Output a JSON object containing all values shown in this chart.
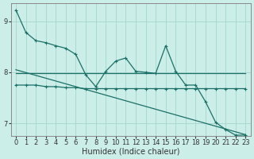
{
  "xlabel": "Humidex (Indice chaleur)",
  "bg_color": "#cceee8",
  "grid_color": "#aad8d0",
  "line_color": "#1a7068",
  "x_max": 23,
  "ylim": [
    6.75,
    9.35
  ],
  "yticks": [
    7,
    8,
    9
  ],
  "series": {
    "line1": {
      "x": [
        0,
        1,
        2,
        3,
        4,
        5,
        6,
        7,
        8,
        9,
        10,
        11,
        12,
        13,
        14,
        15,
        16,
        17,
        18,
        19,
        20,
        21,
        22,
        23
      ],
      "y": [
        9.22,
        8.78,
        8.62,
        8.58,
        8.52,
        8.47,
        8.35,
        7.95,
        7.72,
        8.02,
        8.22,
        8.28,
        8.02,
        8.0,
        7.98,
        8.52,
        8.02,
        7.75,
        7.75,
        7.42,
        7.02,
        6.88,
        6.77,
        6.77
      ]
    },
    "line2": {
      "x": [
        0,
        1,
        2,
        3,
        4,
        5,
        6,
        7,
        8,
        9,
        10,
        11,
        12,
        13,
        14,
        15,
        16,
        17,
        18,
        19,
        20,
        21,
        22,
        23
      ],
      "y": [
        7.98,
        7.98,
        7.98,
        7.98,
        7.98,
        7.98,
        7.98,
        7.98,
        7.98,
        7.98,
        7.98,
        7.98,
        7.98,
        7.98,
        7.98,
        7.98,
        7.98,
        7.98,
        7.98,
        7.98,
        7.98,
        7.98,
        7.98,
        7.98
      ]
    },
    "line3": {
      "x": [
        0,
        1,
        2,
        3,
        4,
        5,
        6,
        7,
        8,
        9,
        10,
        11,
        12,
        13,
        14,
        15,
        16,
        17,
        18,
        19,
        20,
        21,
        22,
        23
      ],
      "y": [
        7.75,
        7.75,
        7.75,
        7.72,
        7.72,
        7.7,
        7.7,
        7.68,
        7.68,
        7.68,
        7.68,
        7.68,
        7.68,
        7.68,
        7.68,
        7.68,
        7.68,
        7.68,
        7.68,
        7.68,
        7.68,
        7.68,
        7.68,
        7.68
      ]
    },
    "line4": {
      "x": [
        0,
        23
      ],
      "y": [
        8.05,
        6.78
      ]
    }
  }
}
